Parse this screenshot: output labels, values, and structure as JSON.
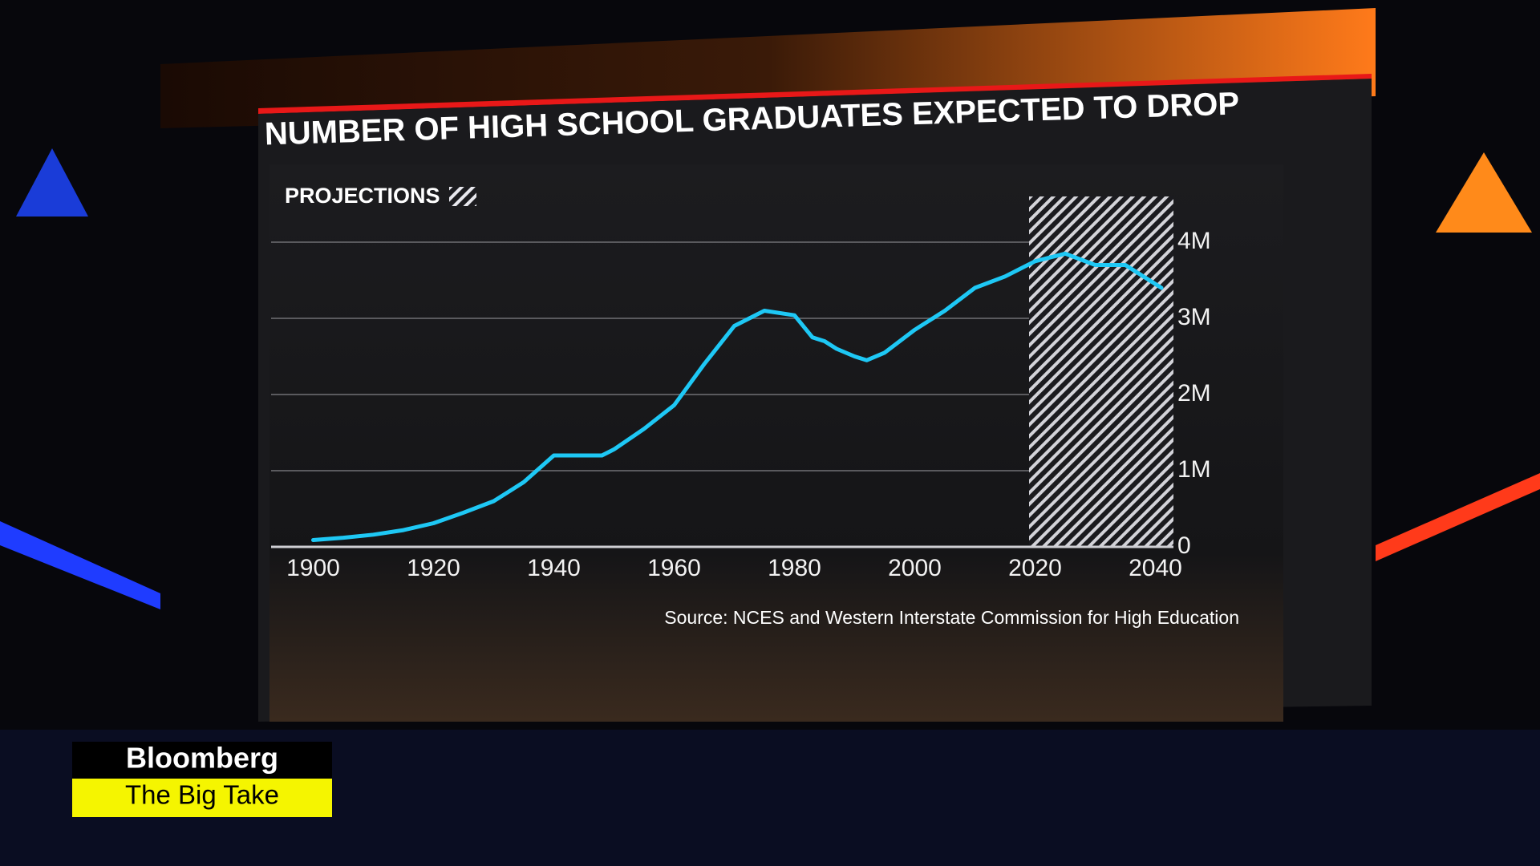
{
  "chart_data": {
    "type": "line",
    "title": "NUMBER OF HIGH SCHOOL GRADUATES EXPECTED TO DROP",
    "legend_label": "PROJECTIONS",
    "projection_range": [
      2019,
      2043
    ],
    "source": "Source: NCES and Western Interstate Commission for High Education",
    "x": [
      1900,
      1905,
      1910,
      1915,
      1920,
      1925,
      1930,
      1935,
      1940,
      1945,
      1948,
      1950,
      1955,
      1960,
      1965,
      1970,
      1975,
      1980,
      1983,
      1985,
      1987,
      1990,
      1992,
      1995,
      2000,
      2005,
      2010,
      2015,
      2020,
      2025,
      2030,
      2035,
      2041
    ],
    "series": [
      {
        "name": "High school graduates",
        "color": "#1ec8f5",
        "values": [
          90000,
          120000,
          160000,
          220000,
          310000,
          450000,
          600000,
          850000,
          1200000,
          1200000,
          1200000,
          1280000,
          1550000,
          1860000,
          2400000,
          2900000,
          3100000,
          3040000,
          2750000,
          2700000,
          2600000,
          2500000,
          2450000,
          2550000,
          2850000,
          3100000,
          3400000,
          3550000,
          3750000,
          3850000,
          3700000,
          3700000,
          3400000
        ]
      }
    ],
    "xlim": [
      1893,
      2043
    ],
    "xticks": [
      1900,
      1920,
      1940,
      1960,
      1980,
      2000,
      2020,
      2040
    ],
    "ylim": [
      0,
      4600000
    ],
    "yticks": [
      0,
      {
        "value": 1000000,
        "label": "1M"
      },
      {
        "value": 2000000,
        "label": "2M"
      },
      {
        "value": 3000000,
        "label": "3M"
      },
      {
        "value": 4000000,
        "label": "4M"
      }
    ],
    "grid": true
  },
  "branding": {
    "network": "Bloomberg",
    "show": "The Big Take"
  }
}
